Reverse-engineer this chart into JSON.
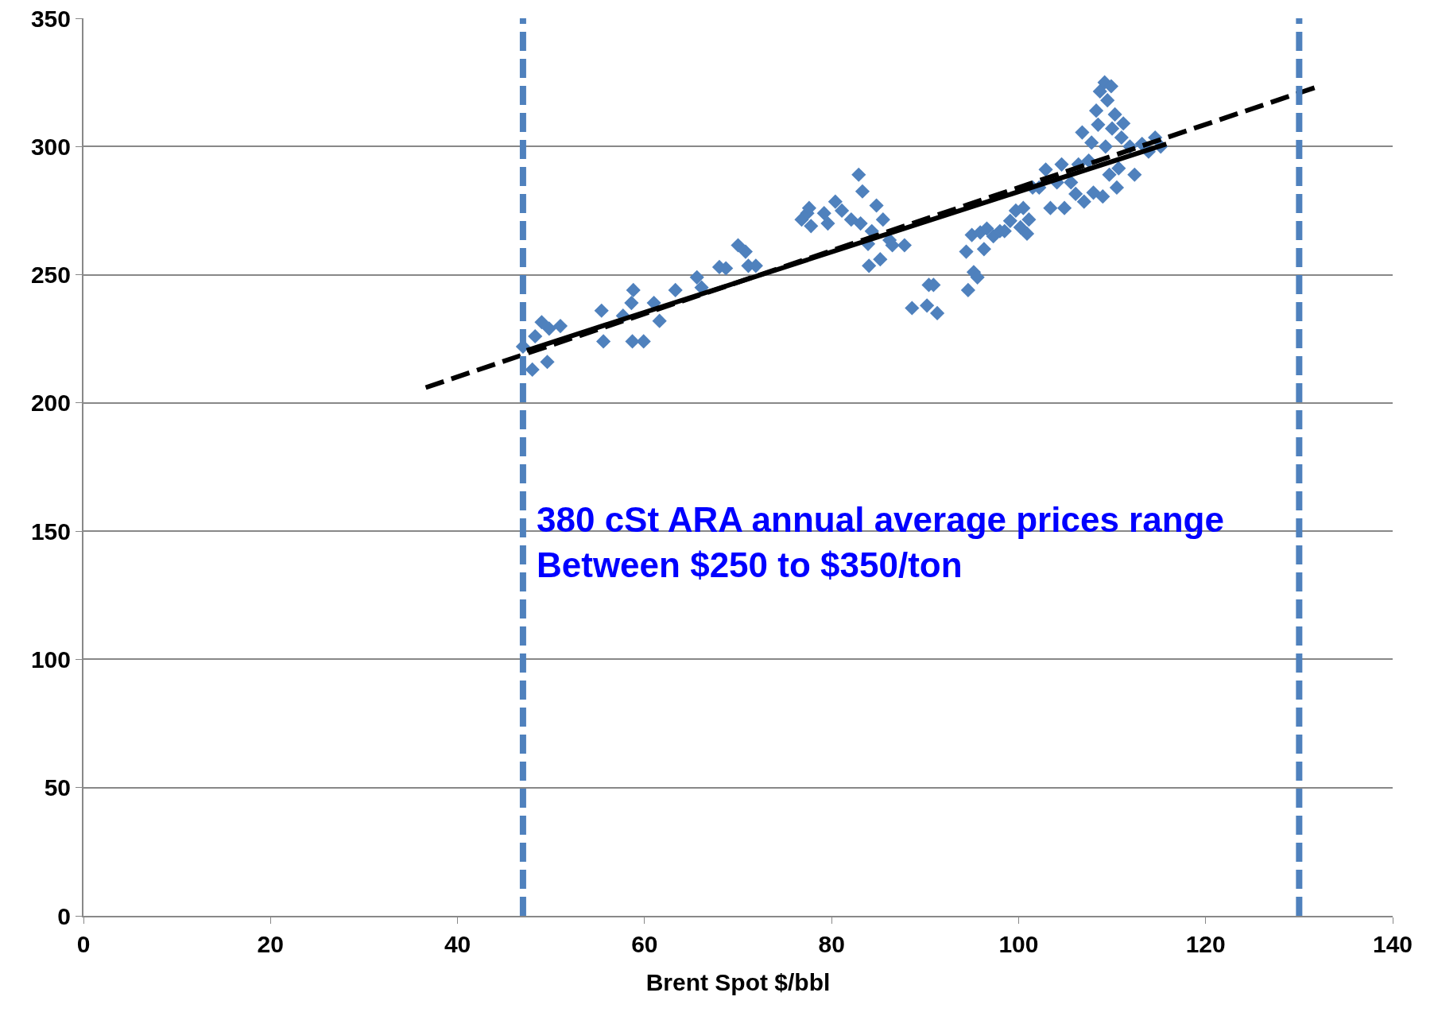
{
  "chart_data": {
    "type": "scatter",
    "xlabel": "Brent Spot $/bbl",
    "xlim": [
      0,
      140
    ],
    "xticks": [
      0,
      20,
      40,
      60,
      80,
      100,
      120,
      140
    ],
    "ylim": [
      0,
      350
    ],
    "yticks": [
      0,
      50,
      100,
      150,
      200,
      250,
      300,
      350
    ],
    "grid": "y",
    "series": [
      {
        "color": "#4f81bd",
        "marker": "diamond",
        "x": [
          47,
          48,
          48.3,
          49,
          49.6,
          49.8,
          51,
          55.6,
          55.4,
          57.7,
          58.8,
          58.7,
          59.9,
          58.6,
          61,
          61.6,
          63.3,
          65.6,
          66.1,
          68,
          68.7,
          70,
          70.8,
          71.1,
          71.9,
          76.8,
          77.4,
          77.8,
          77.6,
          79.2,
          79.6,
          80.4,
          81.1,
          82.1,
          82.9,
          83.3,
          83.1,
          83.9,
          84,
          84.3,
          84.8,
          85.2,
          85.5,
          86.2,
          86.5,
          87.8,
          88.6,
          90.4,
          90.9,
          90.2,
          91.3,
          94.4,
          94.6,
          95,
          95.2,
          95.6,
          95.9,
          96.3,
          96.6,
          97.3,
          98,
          98.5,
          99.1,
          99.7,
          100.2,
          100.5,
          100.9,
          101.1,
          101.5,
          102.2,
          102.9,
          103.4,
          104.1,
          104.6,
          104.9,
          105.6,
          106.1,
          106.4,
          106.8,
          107,
          107.5,
          107.8,
          108,
          108.3,
          108.5,
          108.7,
          109,
          109.2,
          109.3,
          109.5,
          109.7,
          109.9,
          110,
          110.3,
          110.5,
          110.7,
          111,
          111.2,
          111.9,
          112.4,
          113.2,
          113.9,
          114.6,
          115.2
        ],
        "values": [
          222,
          213,
          226,
          231.5,
          216,
          229,
          230,
          224,
          236,
          234,
          244,
          224,
          224,
          239,
          239,
          232,
          244,
          249,
          245,
          253,
          252.5,
          261.5,
          259,
          253.5,
          253.5,
          271.5,
          274,
          269,
          276,
          274,
          270,
          278.5,
          275,
          271.5,
          289,
          282.5,
          270,
          262,
          253.5,
          267,
          277,
          256,
          271.5,
          263.5,
          261.5,
          261.5,
          237,
          246,
          246,
          238,
          235,
          259,
          244,
          265.5,
          251,
          249,
          266.5,
          260,
          268,
          265,
          267,
          267,
          271,
          275,
          268.5,
          276,
          266,
          271.5,
          284,
          284,
          291,
          276,
          286,
          293,
          276,
          286,
          281.5,
          293,
          305.5,
          278.5,
          294.5,
          301.5,
          282,
          314,
          308.5,
          321.5,
          280.5,
          325,
          300,
          318,
          289,
          323.5,
          307,
          312.5,
          284,
          291.5,
          303.5,
          309,
          300,
          289,
          301,
          298,
          303.5,
          300
        ]
      },
      {
        "type": "line",
        "color": "#000000",
        "line_style": "dashed",
        "x": [
          36.6,
          131.7
        ],
        "values": [
          206,
          323
        ]
      },
      {
        "type": "line",
        "color": "#000000",
        "line_style": "solid",
        "x": [
          47.4,
          115.8
        ],
        "values": [
          220.5,
          301
        ]
      }
    ],
    "ref_lines": [
      {
        "axis": "x",
        "value": 47,
        "color": "#4f81bd",
        "line_style": "dashed"
      },
      {
        "axis": "x",
        "value": 130,
        "color": "#4f81bd",
        "line_style": "dashed"
      }
    ],
    "annotations": [
      "380 cSt ARA annual average prices range\nBetween $250 to $350/ton"
    ]
  }
}
